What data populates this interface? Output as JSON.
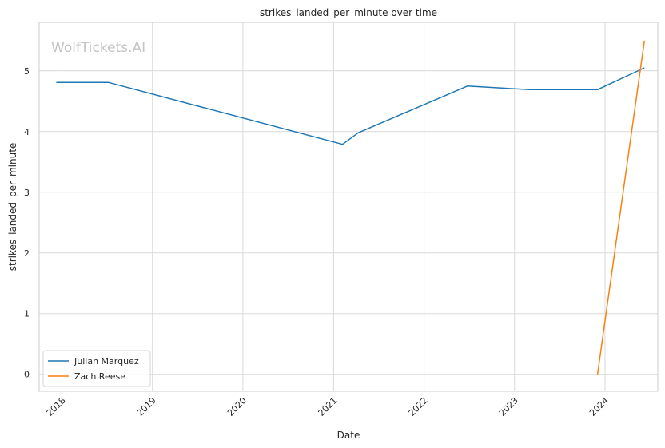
{
  "chart_data": {
    "type": "line",
    "title": "strikes_landed_per_minute over time",
    "xlabel": "Date",
    "ylabel": "strikes_landed_per_minute",
    "watermark": "WolfTickets.AI",
    "xlim": [
      "2017-10-01",
      "2024-08-01"
    ],
    "ylim": [
      -0.28,
      5.8
    ],
    "x_ticks": [
      "2018-01-01",
      "2019-01-01",
      "2020-01-01",
      "2021-01-01",
      "2022-01-01",
      "2023-01-01",
      "2024-01-01"
    ],
    "x_tick_labels": [
      "2018",
      "2019",
      "2020",
      "2021",
      "2022",
      "2023",
      "2024"
    ],
    "y_ticks": [
      0,
      1,
      2,
      3,
      4,
      5
    ],
    "y_tick_labels": [
      "0",
      "1",
      "2",
      "3",
      "4",
      "5"
    ],
    "grid": true,
    "legend_position": "lower-left",
    "series": [
      {
        "name": "Julian Marquez",
        "color": "#1f77b4",
        "x": [
          "2017-12-09",
          "2018-07-07",
          "2021-02-06",
          "2021-04-10",
          "2022-06-25",
          "2023-03-04",
          "2023-12-02",
          "2024-06-08"
        ],
        "y": [
          4.81,
          4.81,
          3.79,
          3.98,
          4.75,
          4.69,
          4.69,
          5.05
        ]
      },
      {
        "name": "Zach Reese",
        "color": "#ff7f0e",
        "x": [
          "2023-12-02",
          "2024-06-08"
        ],
        "y": [
          0.0,
          5.5
        ]
      }
    ]
  }
}
